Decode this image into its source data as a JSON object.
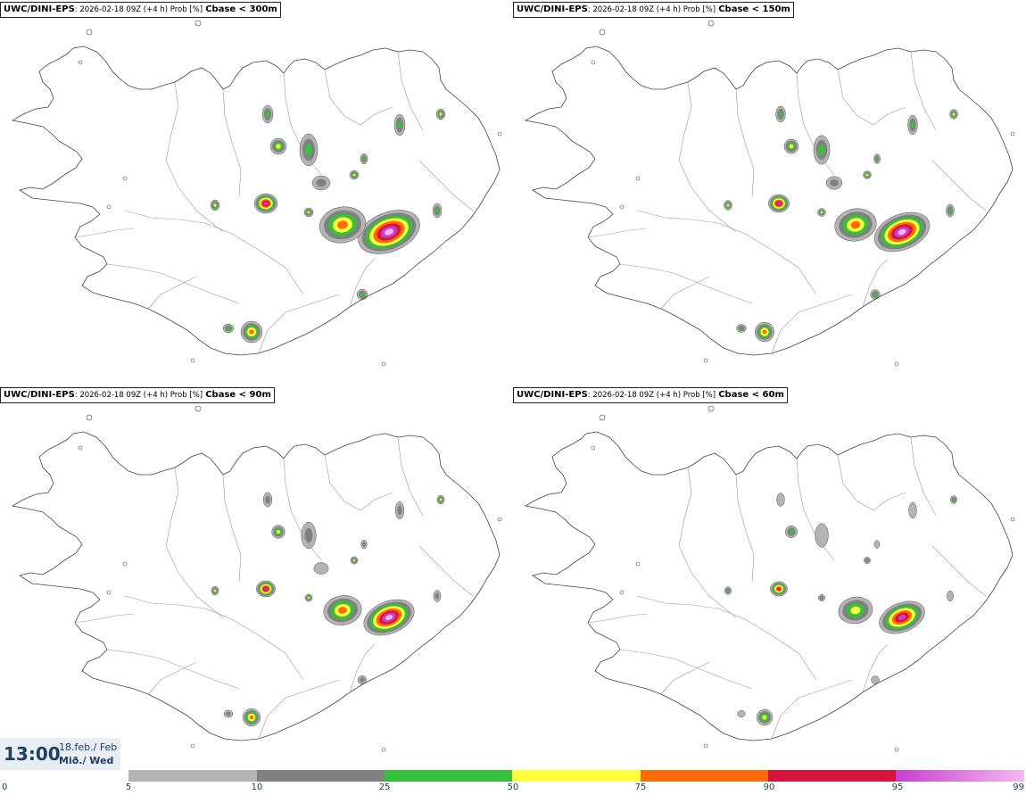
{
  "panels": [
    {
      "model": "UWC/DINI-EPS",
      "meta": ": 2026-02-18 09Z (+4 h) Prob [%]",
      "field": "Cbase < 300m"
    },
    {
      "model": "UWC/DINI-EPS",
      "meta": ": 2026-02-18 09Z (+4 h) Prob [%]",
      "field": "Cbase < 150m"
    },
    {
      "model": "UWC/DINI-EPS",
      "meta": ": 2026-02-18 09Z (+4 h) Prob [%]",
      "field": "Cbase < 90m"
    },
    {
      "model": "UWC/DINI-EPS",
      "meta": ": 2026-02-18 09Z (+4 h) Prob [%]",
      "field": "Cbase < 60m"
    }
  ],
  "valid_time": {
    "time": "13:00",
    "date_line": "18.feb./ Feb",
    "day_line": "Mið./ Wed"
  },
  "legend": {
    "ticks": [
      "0",
      "5",
      "10",
      "25",
      "50",
      "75",
      "90",
      "95",
      "99"
    ],
    "bins": [
      {
        "from": 5,
        "to": 10,
        "color": "#b4b4b4"
      },
      {
        "from": 10,
        "to": 25,
        "color": "#808080"
      },
      {
        "from": 25,
        "to": 50,
        "color": "#36c13c"
      },
      {
        "from": 50,
        "to": 75,
        "color": "#ffff3c"
      },
      {
        "from": 75,
        "to": 90,
        "color": "#ff6a0a"
      },
      {
        "from": 90,
        "to": 95,
        "color": "#d9143c"
      },
      {
        "from": 95,
        "to": 99,
        "color": "#c93ed0"
      },
      {
        "from": 99,
        "to": 100,
        "color": "#f5b8f0"
      }
    ]
  },
  "colors": {
    "p5": "#b4b4b4",
    "p10": "#808080",
    "p25": "#36c13c",
    "p50": "#ffff3c",
    "p75": "#ff6a0a",
    "p90": "#d9143c",
    "p95": "#c93ed0",
    "p99": "#f5b8f0",
    "coast": "#444444",
    "boundary": "#9a9a9a"
  }
}
